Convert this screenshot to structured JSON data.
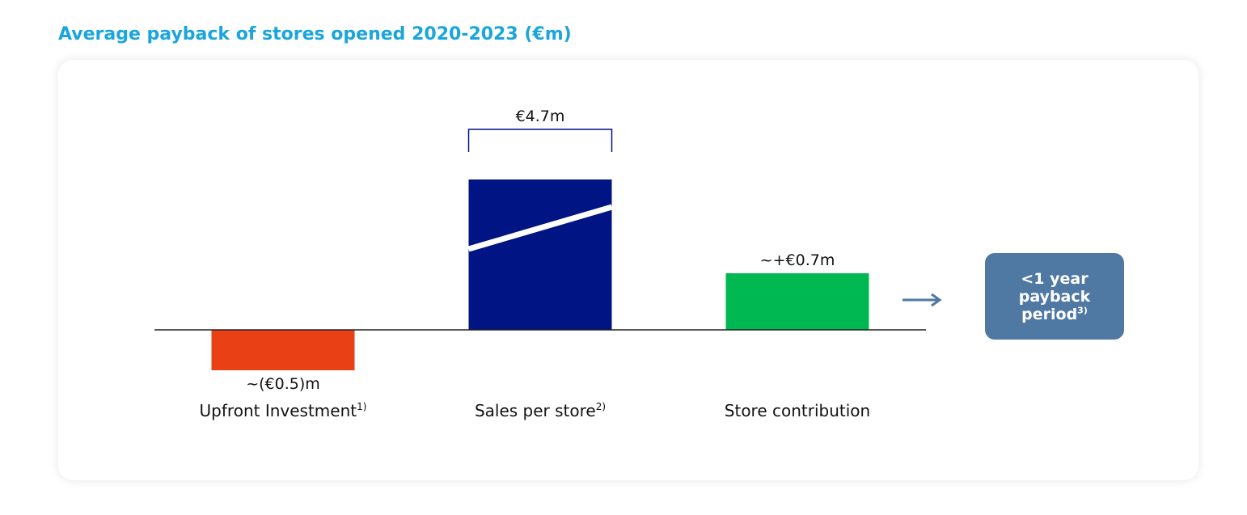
{
  "title": "Average payback of stores opened 2020-2023 (€m)",
  "chart_data": {
    "type": "bar",
    "title": "Average payback of stores opened 2020-2023 (€m)",
    "unit": "€m",
    "categories": [
      "Upfront Investment",
      "Sales per store",
      "Store contribution"
    ],
    "category_footnotes": [
      "1)",
      "2)",
      ""
    ],
    "values": [
      -0.5,
      4.7,
      0.7
    ],
    "value_labels": [
      "~(€0.5)m",
      "€4.7m",
      "~+€0.7m"
    ],
    "colors": [
      "#ea4015",
      "#001483",
      "#00b852"
    ],
    "axis_break_on": "Sales per store",
    "ylim": [
      -0.5,
      4.7
    ],
    "grid": false
  },
  "callout": {
    "line1": "<1 year",
    "line2": "payback",
    "line3": "period",
    "footnote": "3)"
  },
  "colors": {
    "title": "#1aa5dc",
    "callout_bg": "#4f78a3",
    "arrow": "#4f78a3"
  }
}
